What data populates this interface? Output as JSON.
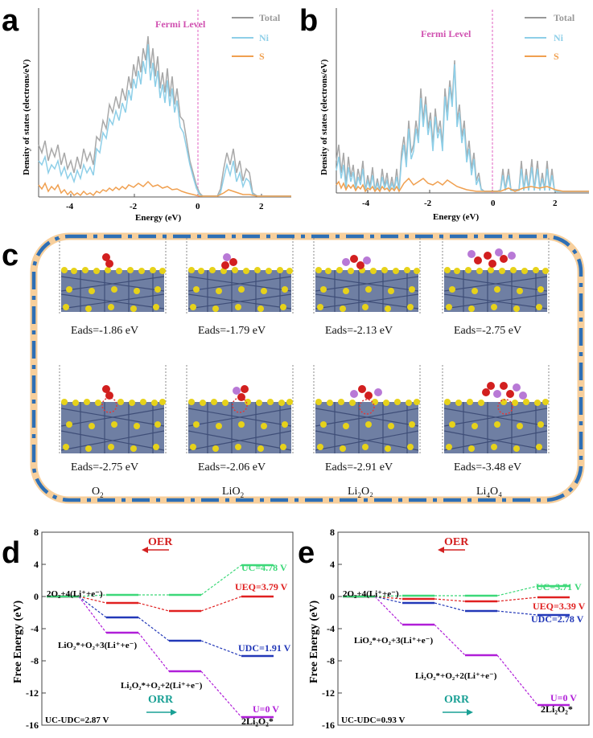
{
  "dos_a": {
    "panel_label": "a",
    "fermi_label": "Fermi Level",
    "ylabel": "Density of states (electrons/eV)",
    "xlabel": "Energy (eV)",
    "xticks": [
      "-4",
      "-2",
      "0",
      "2"
    ],
    "legend": [
      {
        "name": "Total",
        "color": "#999999"
      },
      {
        "name": "Ni",
        "color": "#8ecfe8"
      },
      {
        "name": "S",
        "color": "#f0a050"
      }
    ]
  },
  "dos_b": {
    "panel_label": "b",
    "fermi_label": "Fermi Level",
    "ylabel": "Density of states (electrons/eV)",
    "xlabel": "Energy (eV)",
    "xticks": [
      "-4",
      "-2",
      "0",
      "2"
    ],
    "legend": [
      {
        "name": "Total",
        "color": "#999999"
      },
      {
        "name": "Ni",
        "color": "#8ecfe8"
      },
      {
        "name": "S",
        "color": "#f0a050"
      }
    ]
  },
  "structures": {
    "panel_label": "c",
    "top_row": [
      "Eads=-1.86 eV",
      "Eads=-1.79 eV",
      "Eads=-2.13 eV",
      "Eads=-2.75 eV"
    ],
    "bottom_row": [
      "Eads=-2.75 eV",
      "Eads=-2.06 eV",
      "Eads=-2.91 eV",
      "Eads=-3.48 eV"
    ],
    "species": [
      {
        "base": "O",
        "sub": "2",
        "rest": ""
      },
      {
        "base": "LiO",
        "sub": "2",
        "rest": ""
      },
      {
        "base": "Li",
        "sub": "2",
        "rest": "O₂"
      },
      {
        "base": "Li",
        "sub": "4",
        "rest": "O₄"
      }
    ]
  },
  "chart_data": [
    {
      "type": "line",
      "id": "d",
      "title": "",
      "xlabel": "",
      "ylabel": "Free Energy (eV)",
      "ylim": [
        -16,
        8
      ],
      "yticks": [
        8,
        4,
        0,
        -4,
        -8,
        -12,
        -16
      ],
      "arrows": {
        "oer": "OER",
        "orr": "ORR"
      },
      "annotations": {
        "start": "2O₂+4(Li⁺+e⁻)",
        "lio2": "LiO₂*+O₂+3(Li⁺+e⁻)",
        "li2o2": "Li₂O₂*+O₂+2(Li⁺+e⁻)",
        "end": "2Li₂O₂*",
        "uc": "UC=4.78 V",
        "ueq": "UEQ=3.79 V",
        "udc": "UDC=1.91 V",
        "u0": "U=0 V",
        "gap": "UC-UDC=2.87 V"
      },
      "series": [
        {
          "name": "U=0 V",
          "color": "#b01ed8",
          "values": [
            0,
            -4.5,
            -9.3,
            -15
          ]
        },
        {
          "name": "UDC=1.91 V",
          "color": "#2238b8",
          "values": [
            0,
            -2.6,
            -5.5,
            -7.4
          ]
        },
        {
          "name": "UEQ=3.79 V",
          "color": "#e02020",
          "values": [
            0,
            -0.8,
            -1.8,
            0
          ]
        },
        {
          "name": "UC=4.78 V",
          "color": "#3cd878",
          "values": [
            0,
            0.2,
            0.2,
            3.9
          ]
        }
      ]
    },
    {
      "type": "line",
      "id": "e",
      "title": "",
      "xlabel": "",
      "ylabel": "Free Energy (eV)",
      "ylim": [
        -16,
        8
      ],
      "yticks": [
        8,
        4,
        0,
        -4,
        -8,
        -12,
        -16
      ],
      "arrows": {
        "oer": "OER",
        "orr": "ORR"
      },
      "annotations": {
        "start": "2O₂+4(Li⁺+e⁻)",
        "lio2": "LiO₂*+O₂+3(Li⁺+e⁻)",
        "li2o2": "Li₂O₂*+O₂+2(Li⁺+e⁻)",
        "end": "2Li₂O₂*",
        "uc": "UC=3.71 V",
        "ueq": "UEQ=3.39 V",
        "udc": "UDC=2.78 V",
        "u0": "U=0 V",
        "gap": "UC-UDC=0.93 V"
      },
      "series": [
        {
          "name": "U=0 V",
          "color": "#b01ed8",
          "values": [
            0,
            -3.5,
            -7.3,
            -13.5
          ]
        },
        {
          "name": "UDC=2.78 V",
          "color": "#2238b8",
          "values": [
            0,
            -0.8,
            -1.8,
            -2.3
          ]
        },
        {
          "name": "UEQ=3.39 V",
          "color": "#e02020",
          "values": [
            0,
            -0.3,
            -0.6,
            -0.1
          ]
        },
        {
          "name": "UC=3.71 V",
          "color": "#3cd878",
          "values": [
            0,
            0.1,
            0.1,
            1.3
          ]
        }
      ]
    }
  ]
}
